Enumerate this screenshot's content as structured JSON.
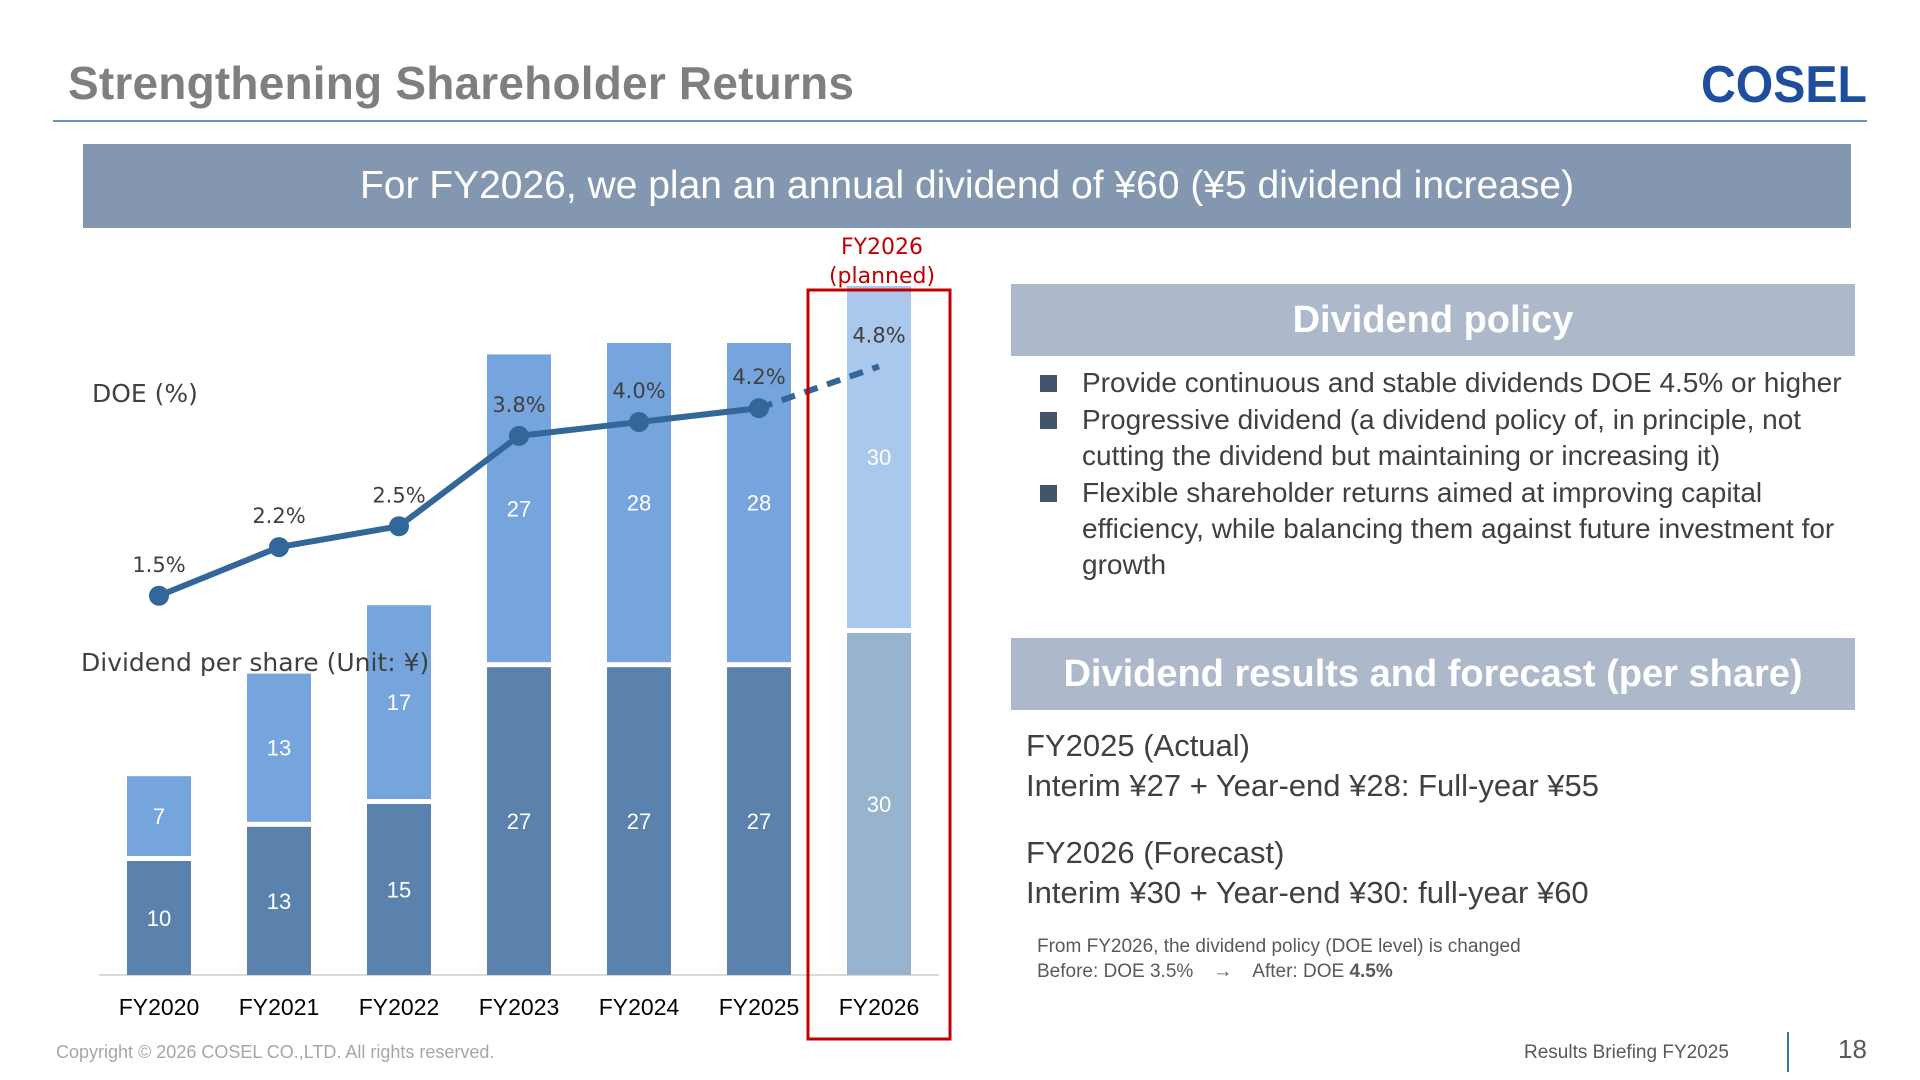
{
  "slide": {
    "title": "Strengthening Shareholder Returns",
    "logo_text": "COSEL",
    "banner": "For FY2026, we plan an annual dividend of ¥60 (¥5 dividend increase)"
  },
  "policy": {
    "heading": "Dividend policy",
    "items": [
      "Provide continuous and stable dividends DOE 4.5% or higher",
      "Progressive dividend (a dividend policy of, in principle, not cutting the dividend but maintaining or increasing it)",
      "Flexible shareholder returns aimed at improving capital efficiency, while balancing them against future investment for growth"
    ]
  },
  "results": {
    "heading": "Dividend results and forecast (per share)",
    "fy2025_title": "FY2025 (Actual)",
    "fy2025_detail": "Interim ¥27 + Year-end ¥28: Full-year ¥55",
    "fy2026_title": "FY2026 (Forecast)",
    "fy2026_detail": "Interim ¥30 + Year-end ¥30: full-year ¥60",
    "note_line1": "From FY2026, the dividend policy (DOE level) is changed",
    "note_before": "Before: DOE 3.5%",
    "note_arrow": "→",
    "note_after_label": "After: DOE",
    "note_after_value": "4.5%"
  },
  "footer": {
    "copyright": "Copyright © 2026 COSEL CO.,LTD. All rights reserved.",
    "briefing": "Results Briefing FY2025",
    "page": "18"
  },
  "chart_data": {
    "type": "bar",
    "stacked": true,
    "categories": [
      "FY2020",
      "FY2021",
      "FY2022",
      "FY2023",
      "FY2024",
      "FY2025",
      "FY2026"
    ],
    "bar_axis_label": "Dividend per share (Unit: ¥)",
    "series": [
      {
        "values": [
          10,
          13,
          15,
          27,
          27,
          27,
          30
        ],
        "color": "#5b82ad"
      },
      {
        "values": [
          7,
          13,
          17,
          27,
          28,
          28,
          30
        ],
        "color": "#76a5de"
      }
    ],
    "planned_colors": {
      "lower": "#98b3cd",
      "upper": "#aac7ec"
    },
    "line": {
      "label": "DOE (%)",
      "values": [
        1.5,
        2.2,
        2.5,
        3.8,
        4.0,
        4.2,
        4.8
      ],
      "value_labels": [
        "1.5%",
        "2.2%",
        "2.5%",
        "3.8%",
        "4.0%",
        "4.2%",
        "4.8%"
      ],
      "color": "#336699",
      "dashed_last_segment": true
    },
    "highlight": {
      "category": "FY2026",
      "label_line1": "FY2026",
      "label_line2": "(planned)",
      "color": "#c00000"
    }
  }
}
